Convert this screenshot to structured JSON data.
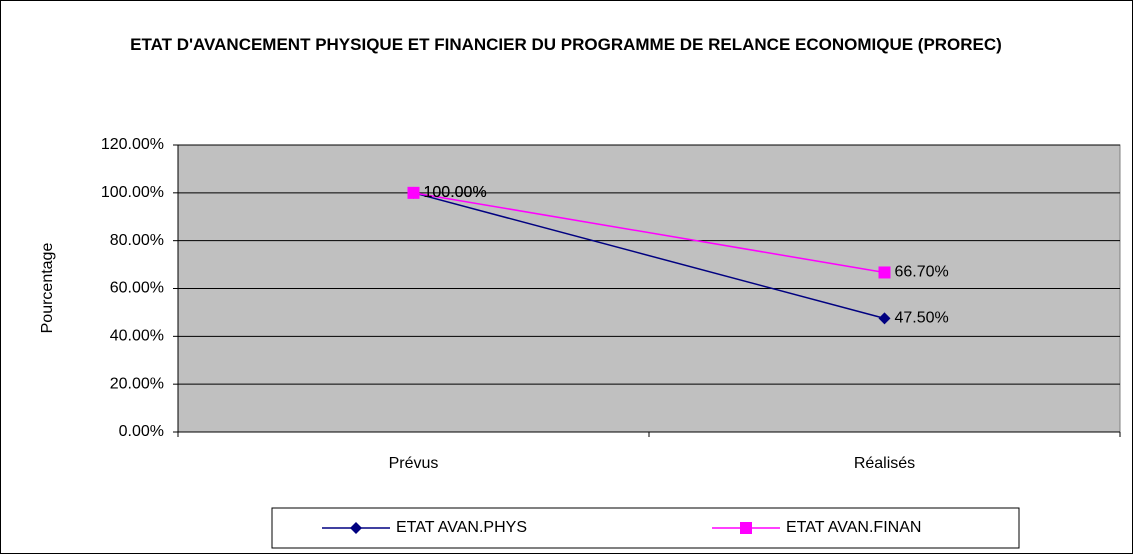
{
  "chart_data": {
    "type": "line",
    "title": "ETAT D'AVANCEMENT PHYSIQUE ET FINANCIER DU PROGRAMME DE RELANCE ECONOMIQUE (PROREC)",
    "y_label": "Pourcentage",
    "categories": [
      "Prévus",
      "Réalisés"
    ],
    "series": [
      {
        "name": "ETAT AVAN.PHYS",
        "color": "#000080",
        "marker": "diamond",
        "values": [
          100,
          47.5
        ],
        "value_labels": [
          "100.00%",
          "47.50%"
        ]
      },
      {
        "name": "ETAT AVAN.FINAN",
        "color": "#ff00ff",
        "marker": "square",
        "values": [
          100,
          66.7
        ],
        "value_labels": [
          "100.00%",
          "66.70%"
        ]
      }
    ],
    "ylim": [
      0,
      120
    ],
    "yticks": [
      {
        "value": 0,
        "label": "0.00%"
      },
      {
        "value": 20,
        "label": "20.00%"
      },
      {
        "value": 40,
        "label": "40.00%"
      },
      {
        "value": 60,
        "label": "60.00%"
      },
      {
        "value": 80,
        "label": "80.00%"
      },
      {
        "value": 100,
        "label": "100.00%"
      },
      {
        "value": 120,
        "label": "120.00%"
      }
    ],
    "grid": true,
    "legend": "bottom"
  }
}
